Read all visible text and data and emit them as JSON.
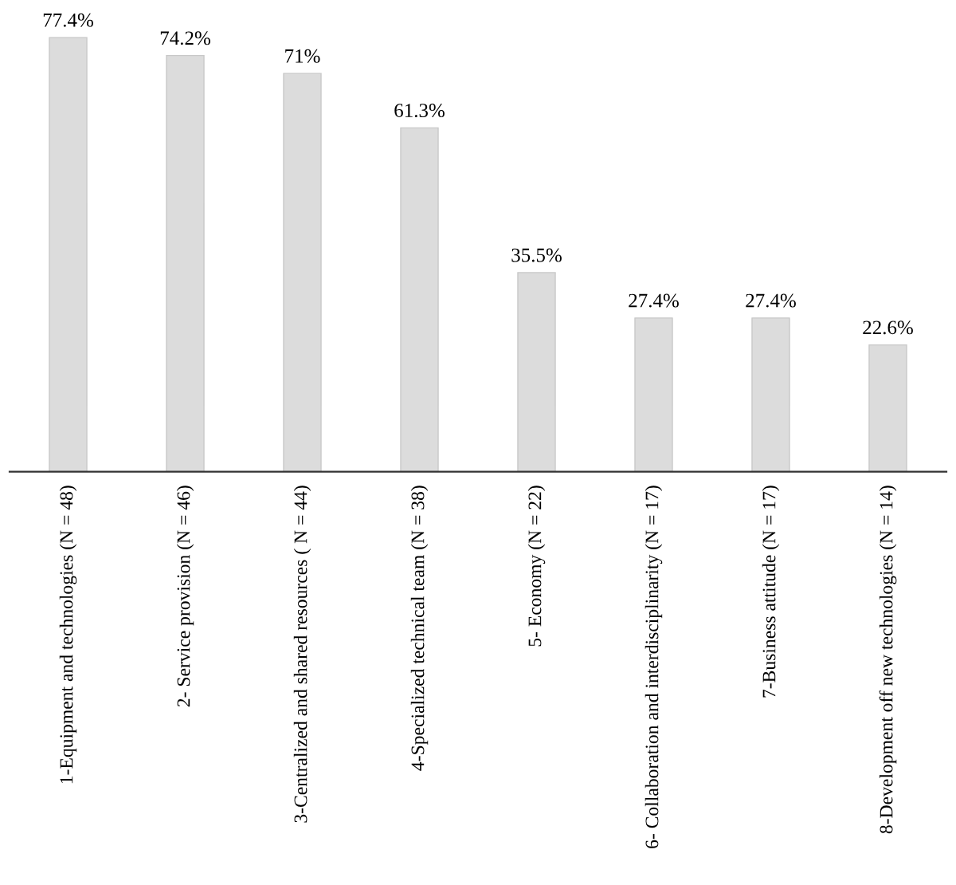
{
  "chart_data": {
    "type": "bar",
    "categories": [
      "1-Equipment and technologies (N = 48)",
      "2- Service provision (N = 46)",
      "3-Centralized and shared resources ( N = 44)",
      "4-Specialized technical team (N = 38)",
      "5- Economy (N = 22)",
      "6- Collaboration and interdisciplinarity (N = 17)",
      "7-Business attitude (N = 17)",
      "8-Development off new technologies (N = 14)"
    ],
    "values": [
      77.4,
      74.2,
      71,
      61.3,
      35.5,
      27.4,
      27.4,
      22.6
    ],
    "value_labels": [
      "77.4%",
      "74.2%",
      "71%",
      "61.3%",
      "35.5%",
      "27.4%",
      "27.4%",
      "22.6%"
    ],
    "color": "#dcdcdc",
    "grid": false
  }
}
